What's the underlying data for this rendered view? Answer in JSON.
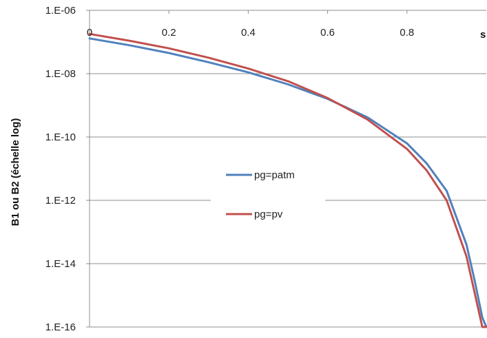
{
  "chart_data": {
    "type": "line",
    "title": "",
    "xlabel": "s",
    "ylabel": "B1 ou B2 (échelle log)",
    "y_scale": "log",
    "xlim": [
      0,
      1
    ],
    "ylim": [
      1e-16,
      1e-06
    ],
    "x_ticks": [
      "0",
      "0.2",
      "0.4",
      "0.6",
      "0.8"
    ],
    "y_ticks": [
      "1.E-06",
      "1.E-08",
      "1.E-10",
      "1.E-12",
      "1.E-14",
      "1.E-16"
    ],
    "grid": "horizontal",
    "legend": "center",
    "series": [
      {
        "name": "pg=patm",
        "color": "#4f81bd",
        "x": [
          0,
          0.1,
          0.2,
          0.3,
          0.4,
          0.5,
          0.6,
          0.7,
          0.8,
          0.85,
          0.9,
          0.95,
          0.97,
          0.99,
          1.0
        ],
        "y": [
          1.3e-07,
          7.9e-08,
          4.5e-08,
          2.3e-08,
          1.1e-08,
          4.6e-09,
          1.6e-09,
          4.2e-10,
          6.3e-11,
          1.45e-11,
          2e-12,
          4e-14,
          3.2e-15,
          2e-16,
          1e-16
        ]
      },
      {
        "name": "pg=pv",
        "color": "#c0504d",
        "x": [
          0,
          0.1,
          0.2,
          0.3,
          0.4,
          0.5,
          0.6,
          0.7,
          0.8,
          0.85,
          0.9,
          0.95,
          0.97,
          0.99,
          1.0
        ],
        "y": [
          1.8e-07,
          1.1e-07,
          6.3e-08,
          3.2e-08,
          1.45e-08,
          5.8e-09,
          1.7e-09,
          3.6e-10,
          4.2e-11,
          8.7e-12,
          1e-12,
          1.7e-14,
          1.3e-15,
          1e-16,
          1e-16
        ]
      }
    ]
  }
}
